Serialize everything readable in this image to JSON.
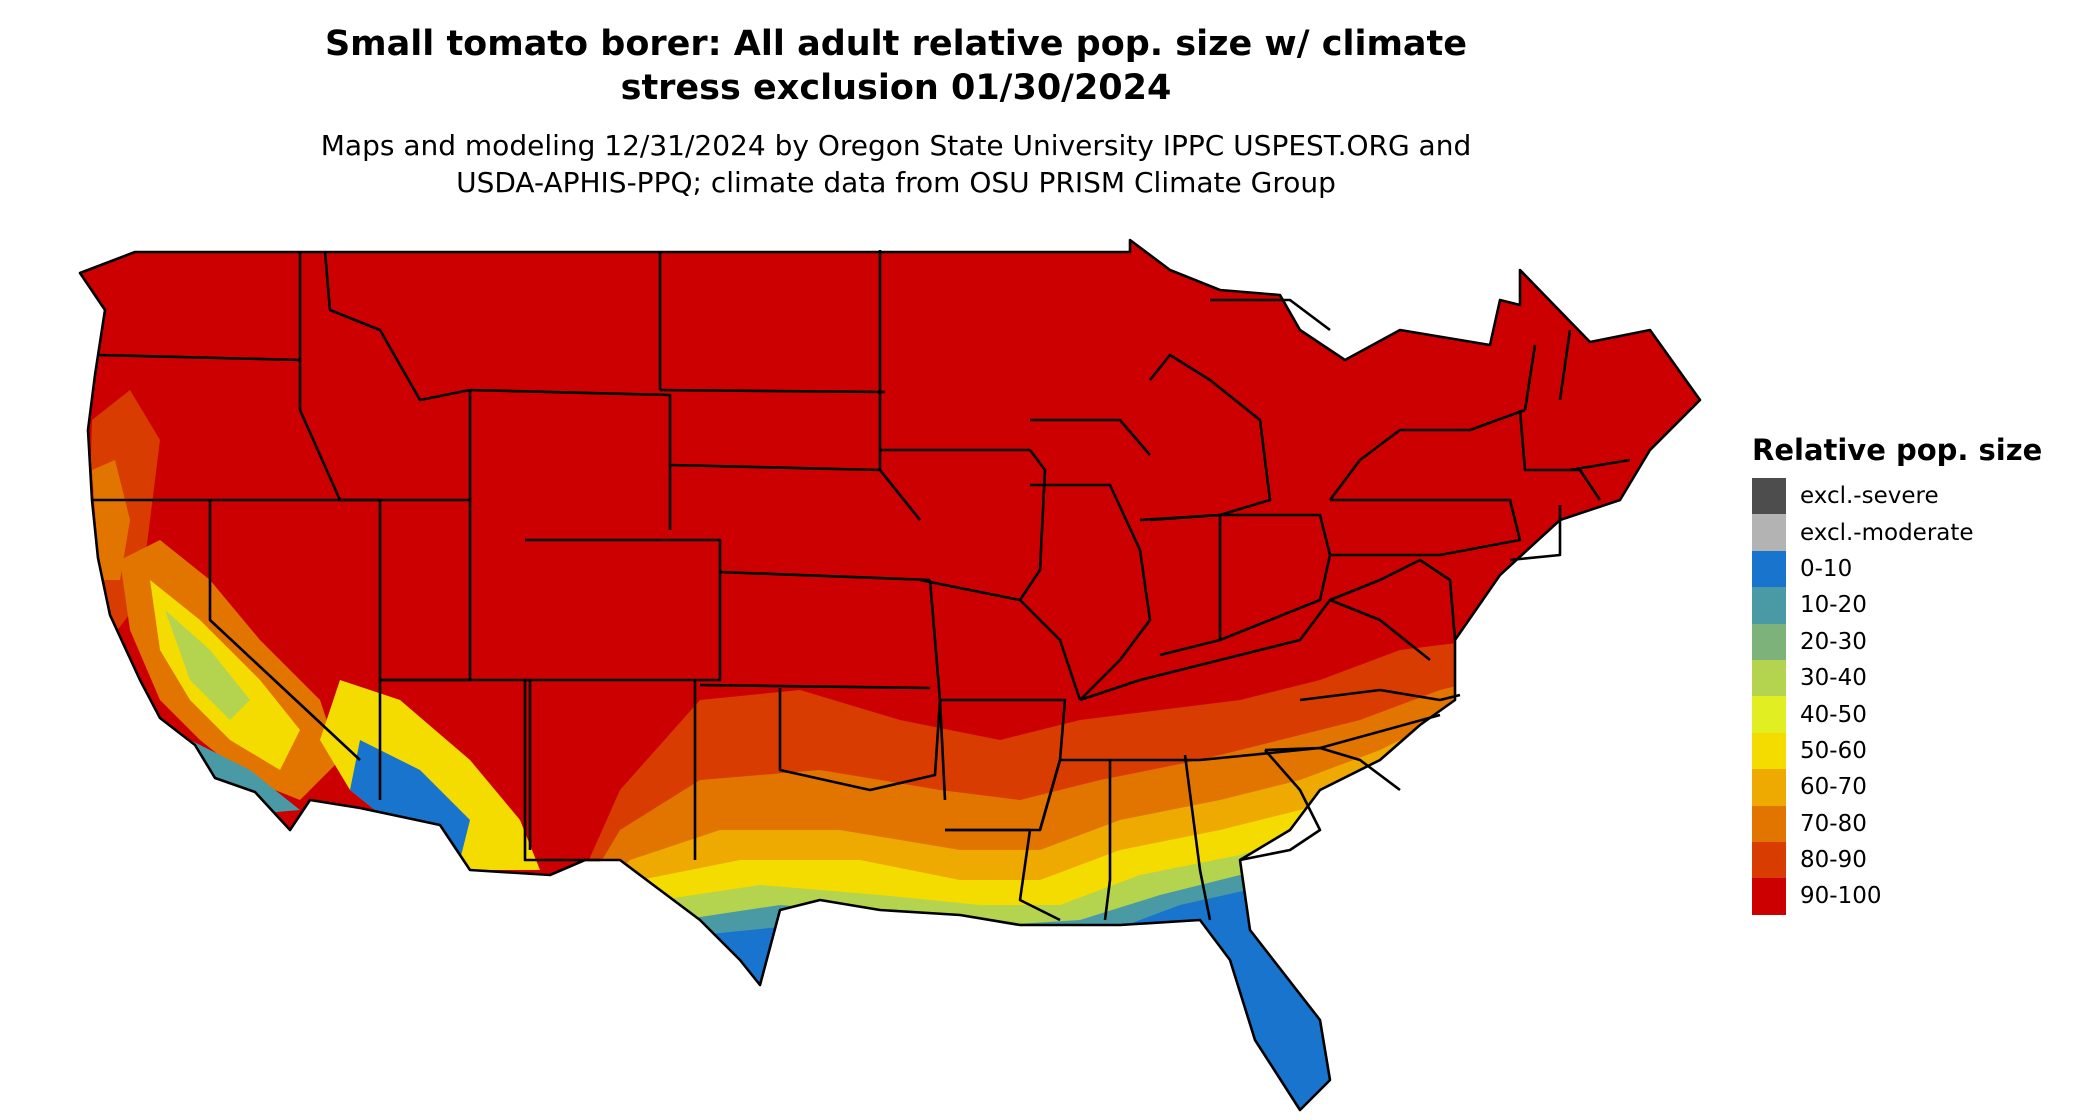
{
  "title": {
    "line1": "Small tomato borer: All adult relative pop. size w/ climate",
    "line2": "stress exclusion 01/30/2024"
  },
  "subtitle": {
    "line1": "Maps and modeling 12/31/2024 by Oregon State University IPPC USPEST.ORG and",
    "line2": "USDA-APHIS-PPQ; climate data from OSU PRISM Climate Group"
  },
  "legend": {
    "title": "Relative pop. size",
    "items": [
      {
        "label": "excl.-severe",
        "color": "#4d4d4d"
      },
      {
        "label": "excl.-moderate",
        "color": "#b3b3b3"
      },
      {
        "label": "0-10",
        "color": "#1874cd"
      },
      {
        "label": "10-20",
        "color": "#4a9aa5"
      },
      {
        "label": "20-30",
        "color": "#7db37a"
      },
      {
        "label": "30-40",
        "color": "#b4d34e"
      },
      {
        "label": "40-50",
        "color": "#e1ee22"
      },
      {
        "label": "50-60",
        "color": "#f5dc00"
      },
      {
        "label": "60-70",
        "color": "#eeaa00"
      },
      {
        "label": "70-80",
        "color": "#e27400"
      },
      {
        "label": "80-90",
        "color": "#d83c00"
      },
      {
        "label": "90-100",
        "color": "#cc0000"
      }
    ]
  },
  "map": {
    "region": "Contiguous United States",
    "state_border_color": "#000000"
  }
}
